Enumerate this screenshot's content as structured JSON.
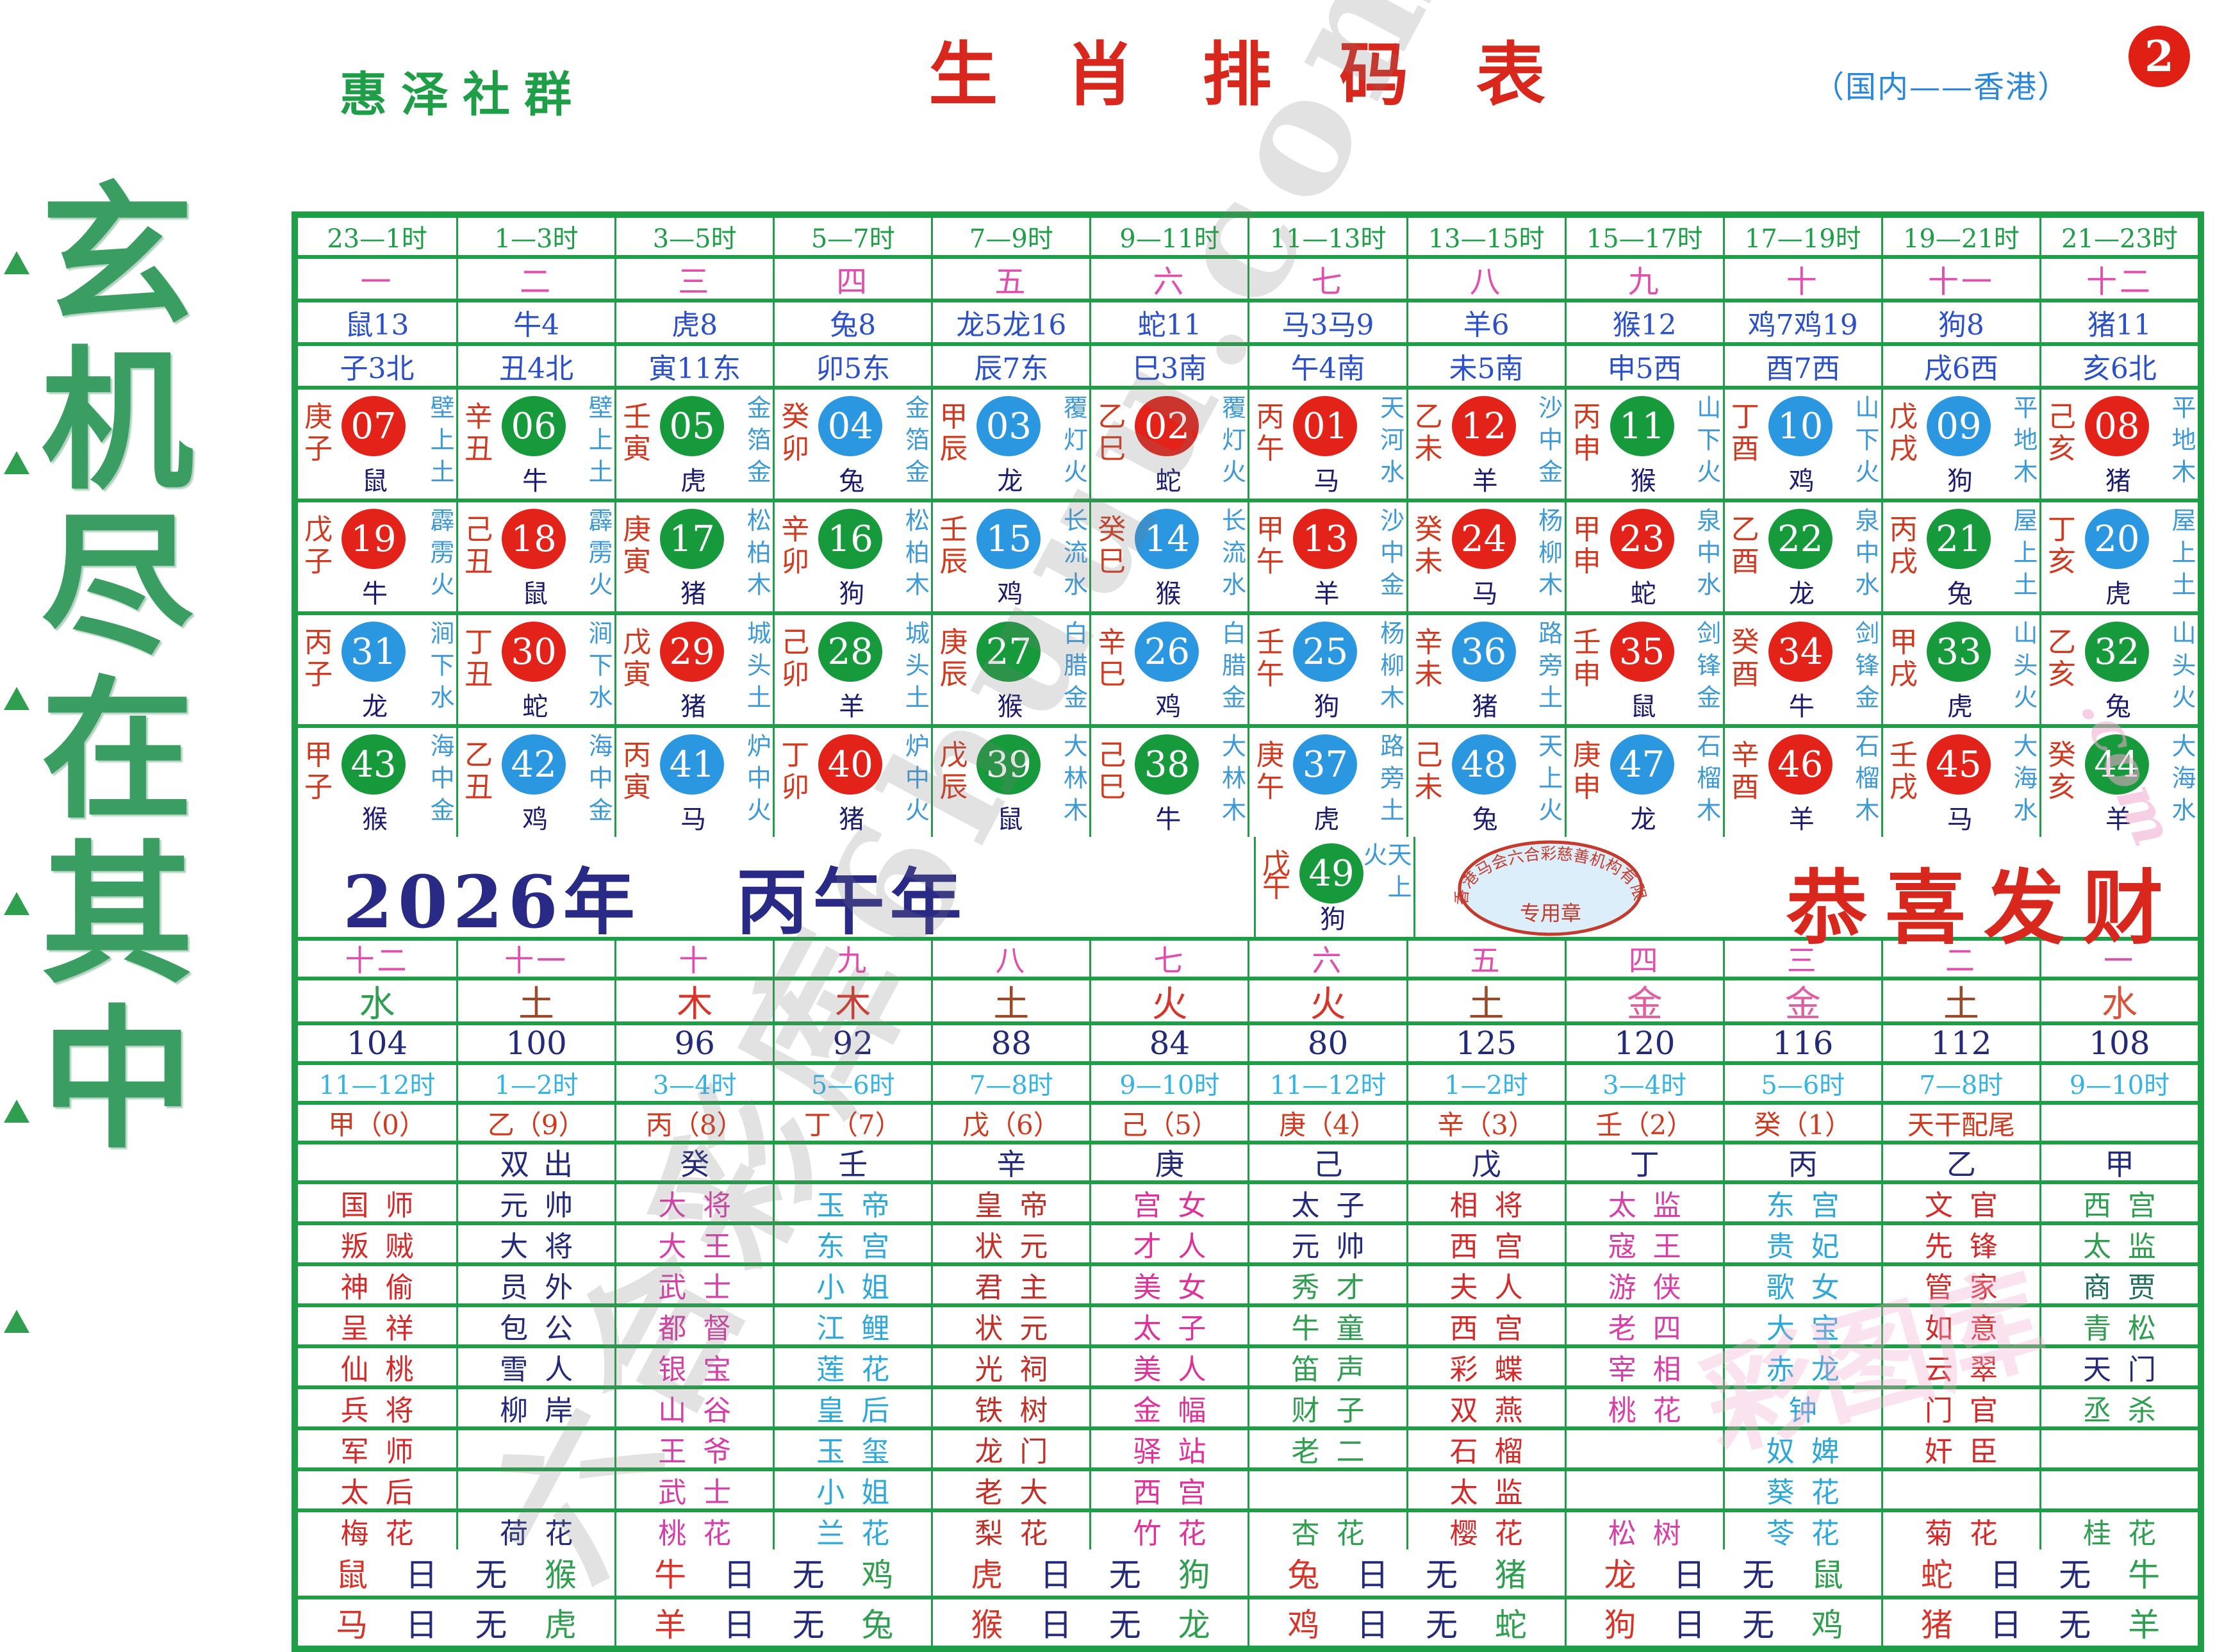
{
  "page": {
    "brand": "惠泽社群",
    "title": "生 肖 排 码 表",
    "region": "（国内——香港）",
    "badge": "2",
    "side_title": "玄机尽在其中",
    "watermark_gray": "六合彩库6huuu.com",
    "watermark_pink": "彩图库",
    "watermark_com": ".com",
    "colors": {
      "grid_green": "#1e9e46",
      "ball_red": "#e32219",
      "ball_green": "#179a3c",
      "ball_blue": "#2b97e0",
      "title_red": "#d8281e",
      "navy": "#232a7a"
    }
  },
  "top": {
    "hours": [
      "23—1时",
      "1—3时",
      "3—5时",
      "5—7时",
      "7—9时",
      "9—11时",
      "11—13时",
      "13—15时",
      "15—17时",
      "17—19时",
      "19—21时",
      "21—23时"
    ],
    "ordinals": [
      "一",
      "二",
      "三",
      "四",
      "五",
      "六",
      "七",
      "八",
      "九",
      "十",
      "十一",
      "十二"
    ],
    "animals": [
      "鼠13",
      "牛4",
      "虎8",
      "兔8",
      "龙5龙16",
      "蛇11",
      "马3马9",
      "羊6",
      "猴12",
      "鸡7鸡19",
      "狗8",
      "猪11"
    ],
    "branches": [
      "子3北",
      "丑4北",
      "寅11东",
      "卯5东",
      "辰7东",
      "巳3南",
      "午4南",
      "未5南",
      "申5西",
      "酉7西",
      "戌6西",
      "亥6北"
    ]
  },
  "grid": [
    [
      {
        "stem": "庚",
        "branch": "子",
        "num": "07",
        "color": "r",
        "animal": "鼠",
        "nayin": "壁上土"
      },
      {
        "stem": "辛",
        "branch": "丑",
        "num": "06",
        "color": "g",
        "animal": "牛",
        "nayin": "壁上土"
      },
      {
        "stem": "壬",
        "branch": "寅",
        "num": "05",
        "color": "g",
        "animal": "虎",
        "nayin": "金箔金"
      },
      {
        "stem": "癸",
        "branch": "卯",
        "num": "04",
        "color": "b",
        "animal": "兔",
        "nayin": "金箔金"
      },
      {
        "stem": "甲",
        "branch": "辰",
        "num": "03",
        "color": "b",
        "animal": "龙",
        "nayin": "覆灯火"
      },
      {
        "stem": "乙",
        "branch": "巳",
        "num": "02",
        "color": "r",
        "animal": "蛇",
        "nayin": "覆灯火"
      },
      {
        "stem": "丙",
        "branch": "午",
        "num": "01",
        "color": "r",
        "animal": "马",
        "nayin": "天河水"
      },
      {
        "stem": "乙",
        "branch": "未",
        "num": "12",
        "color": "r",
        "animal": "羊",
        "nayin": "沙中金"
      },
      {
        "stem": "丙",
        "branch": "申",
        "num": "11",
        "color": "g",
        "animal": "猴",
        "nayin": "山下火"
      },
      {
        "stem": "丁",
        "branch": "酉",
        "num": "10",
        "color": "b",
        "animal": "鸡",
        "nayin": "山下火"
      },
      {
        "stem": "戊",
        "branch": "戌",
        "num": "09",
        "color": "b",
        "animal": "狗",
        "nayin": "平地木"
      },
      {
        "stem": "己",
        "branch": "亥",
        "num": "08",
        "color": "r",
        "animal": "猪",
        "nayin": "平地木"
      }
    ],
    [
      {
        "stem": "戊",
        "branch": "子",
        "num": "19",
        "color": "r",
        "animal": "牛",
        "nayin": "霹雳火"
      },
      {
        "stem": "己",
        "branch": "丑",
        "num": "18",
        "color": "r",
        "animal": "鼠",
        "nayin": "霹雳火"
      },
      {
        "stem": "庚",
        "branch": "寅",
        "num": "17",
        "color": "g",
        "animal": "猪",
        "nayin": "松柏木"
      },
      {
        "stem": "辛",
        "branch": "卯",
        "num": "16",
        "color": "g",
        "animal": "狗",
        "nayin": "松柏木"
      },
      {
        "stem": "壬",
        "branch": "辰",
        "num": "15",
        "color": "b",
        "animal": "鸡",
        "nayin": "长流水"
      },
      {
        "stem": "癸",
        "branch": "巳",
        "num": "14",
        "color": "b",
        "animal": "猴",
        "nayin": "长流水"
      },
      {
        "stem": "甲",
        "branch": "午",
        "num": "13",
        "color": "r",
        "animal": "羊",
        "nayin": "沙中金"
      },
      {
        "stem": "癸",
        "branch": "未",
        "num": "24",
        "color": "r",
        "animal": "马",
        "nayin": "杨柳木"
      },
      {
        "stem": "甲",
        "branch": "申",
        "num": "23",
        "color": "r",
        "animal": "蛇",
        "nayin": "泉中水"
      },
      {
        "stem": "乙",
        "branch": "酉",
        "num": "22",
        "color": "g",
        "animal": "龙",
        "nayin": "泉中水"
      },
      {
        "stem": "丙",
        "branch": "戌",
        "num": "21",
        "color": "g",
        "animal": "兔",
        "nayin": "屋上土"
      },
      {
        "stem": "丁",
        "branch": "亥",
        "num": "20",
        "color": "b",
        "animal": "虎",
        "nayin": "屋上土"
      }
    ],
    [
      {
        "stem": "丙",
        "branch": "子",
        "num": "31",
        "color": "b",
        "animal": "龙",
        "nayin": "涧下水"
      },
      {
        "stem": "丁",
        "branch": "丑",
        "num": "30",
        "color": "r",
        "animal": "蛇",
        "nayin": "涧下水"
      },
      {
        "stem": "戊",
        "branch": "寅",
        "num": "29",
        "color": "r",
        "animal": "猪",
        "nayin": "城头土"
      },
      {
        "stem": "己",
        "branch": "卯",
        "num": "28",
        "color": "g",
        "animal": "羊",
        "nayin": "城头土"
      },
      {
        "stem": "庚",
        "branch": "辰",
        "num": "27",
        "color": "g",
        "animal": "猴",
        "nayin": "白腊金"
      },
      {
        "stem": "辛",
        "branch": "巳",
        "num": "26",
        "color": "b",
        "animal": "鸡",
        "nayin": "白腊金"
      },
      {
        "stem": "壬",
        "branch": "午",
        "num": "25",
        "color": "b",
        "animal": "狗",
        "nayin": "杨柳木"
      },
      {
        "stem": "辛",
        "branch": "未",
        "num": "36",
        "color": "b",
        "animal": "猪",
        "nayin": "路旁土"
      },
      {
        "stem": "壬",
        "branch": "申",
        "num": "35",
        "color": "r",
        "animal": "鼠",
        "nayin": "剑锋金"
      },
      {
        "stem": "癸",
        "branch": "酉",
        "num": "34",
        "color": "r",
        "animal": "牛",
        "nayin": "剑锋金"
      },
      {
        "stem": "甲",
        "branch": "戌",
        "num": "33",
        "color": "g",
        "animal": "虎",
        "nayin": "山头火"
      },
      {
        "stem": "乙",
        "branch": "亥",
        "num": "32",
        "color": "g",
        "animal": "兔",
        "nayin": "山头火"
      }
    ],
    [
      {
        "stem": "甲",
        "branch": "子",
        "num": "43",
        "color": "g",
        "animal": "猴",
        "nayin": "海中金"
      },
      {
        "stem": "乙",
        "branch": "丑",
        "num": "42",
        "color": "b",
        "animal": "鸡",
        "nayin": "海中金"
      },
      {
        "stem": "丙",
        "branch": "寅",
        "num": "41",
        "color": "b",
        "animal": "马",
        "nayin": "炉中火"
      },
      {
        "stem": "丁",
        "branch": "卯",
        "num": "40",
        "color": "r",
        "animal": "猪",
        "nayin": "炉中火"
      },
      {
        "stem": "戊",
        "branch": "辰",
        "num": "39",
        "color": "g",
        "animal": "鼠",
        "nayin": "大林木"
      },
      {
        "stem": "己",
        "branch": "巳",
        "num": "38",
        "color": "g",
        "animal": "牛",
        "nayin": "大林木"
      },
      {
        "stem": "庚",
        "branch": "午",
        "num": "37",
        "color": "b",
        "animal": "虎",
        "nayin": "路旁土"
      },
      {
        "stem": "己",
        "branch": "未",
        "num": "48",
        "color": "b",
        "animal": "兔",
        "nayin": "天上火"
      },
      {
        "stem": "庚",
        "branch": "申",
        "num": "47",
        "color": "b",
        "animal": "龙",
        "nayin": "石榴木"
      },
      {
        "stem": "辛",
        "branch": "酉",
        "num": "46",
        "color": "r",
        "animal": "羊",
        "nayin": "石榴木"
      },
      {
        "stem": "壬",
        "branch": "戌",
        "num": "45",
        "color": "r",
        "animal": "马",
        "nayin": "大海水"
      },
      {
        "stem": "癸",
        "branch": "亥",
        "num": "44",
        "color": "g",
        "animal": "羊",
        "nayin": "大海水"
      }
    ]
  ],
  "year_band": {
    "year": "2026年",
    "ganzhi": "丙午年",
    "cell49": {
      "stem": "戊",
      "branch": "午",
      "num": "49",
      "color": "g",
      "animal": "狗",
      "nayin": "天上火"
    },
    "seal_text": "香港马会六合彩慈善机构有限公司",
    "seal_label": "专用章",
    "greeting": "恭喜发财"
  },
  "lower": {
    "ordinals": [
      "十二",
      "十一",
      "十",
      "九",
      "八",
      "七",
      "六",
      "五",
      "四",
      "三",
      "二",
      "一"
    ],
    "elements": [
      "水",
      "土",
      "木",
      "木",
      "土",
      "火",
      "火",
      "土",
      "金",
      "金",
      "土",
      "水"
    ],
    "element_colors": [
      "#2f9e4f",
      "#9a4a28",
      "#d8352a",
      "#d8352a",
      "#9a4a28",
      "#d8352a",
      "#d8352a",
      "#9a4a28",
      "#df5f9f",
      "#df5f9f",
      "#9a4a28",
      "#d8543a"
    ],
    "numbers": [
      "104",
      "100",
      "96",
      "92",
      "88",
      "84",
      "80",
      "125",
      "120",
      "116",
      "112",
      "108"
    ],
    "hours2": [
      "11—12时",
      "1—2时",
      "3—4时",
      "5—6时",
      "7—8时",
      "9—10时",
      "11—12时",
      "1—2时",
      "3—4时",
      "5—6时",
      "7—8时",
      "9—10时"
    ],
    "stems": [
      "甲（0）",
      "乙（9）",
      "丙（8）",
      "丁（7）",
      "戊（6）",
      "己（5）",
      "庚（4）",
      "辛（3）",
      "壬（2）",
      "癸（1）",
      "天干配尾",
      ""
    ],
    "doubles": [
      "",
      "双出",
      "癸",
      "壬",
      "辛",
      "庚",
      "己",
      "戊",
      "丁",
      "丙",
      "乙",
      "甲"
    ]
  },
  "names": {
    "rows": [
      [
        "国师",
        "元帅",
        "大将",
        "玉帝",
        "皇帝",
        "宫女",
        "太子",
        "相将",
        "太监",
        "东宫",
        "文官",
        "西宫"
      ],
      [
        "叛贼",
        "大将",
        "大王",
        "东宫",
        "状元",
        "才人",
        "元帅",
        "西宫",
        "寇王",
        "贵妃",
        "先锋",
        "太监"
      ],
      [
        "神偷",
        "员外",
        "武士",
        "小姐",
        "君主",
        "美女",
        "秀才",
        "夫人",
        "游侠",
        "歌女",
        "管家",
        "商贾"
      ],
      [
        "呈祥",
        "包公",
        "都督",
        "江鲤",
        "状元",
        "太子",
        "牛童",
        "西宫",
        "老四",
        "大宝",
        "如意",
        "青松"
      ],
      [
        "仙桃",
        "雪人",
        "银宝",
        "莲花",
        "光祠",
        "美人",
        "笛声",
        "彩蝶",
        "宰相",
        "赤龙",
        "云翠",
        "天门"
      ],
      [
        "兵将",
        "柳岸",
        "山谷",
        "皇后",
        "铁树",
        "金幅",
        "财子",
        "双燕",
        "桃花",
        "钟",
        "门官",
        "丞杀"
      ],
      [
        "军师",
        "",
        "王爷",
        "玉玺",
        "龙门",
        "驿站",
        "老二",
        "石榴",
        "",
        "奴婢",
        "奸臣",
        ""
      ],
      [
        "太后",
        "",
        "武士",
        "小姐",
        "老大",
        "西宫",
        "",
        "太监",
        "",
        "葵花",
        "",
        ""
      ],
      [
        "梅花",
        "荷花",
        "桃花",
        "兰花",
        "梨花",
        "竹花",
        "杏花",
        "樱花",
        "松树",
        "苓花",
        "菊花",
        "桂花"
      ]
    ],
    "column_colors": [
      "#d42a2a",
      "#232a7a",
      "#d63fa8",
      "#2ea8d8",
      "#c03028",
      "#e0309a",
      "#2f9e4f",
      "#d42a2a",
      "#d63fa8",
      "#2ea8d8",
      "#d42a2a",
      "#2f9e4f"
    ],
    "overrides": {
      "0-6": "#232a7a",
      "1-6": "#232a7a",
      "2-11": "#1f6e5e",
      "4-11": "#232a7a"
    }
  },
  "bottom": {
    "row1": [
      "鼠日无猴",
      "牛日无鸡",
      "虎日无狗",
      "兔日无猪",
      "龙日无鼠",
      "蛇日无牛"
    ],
    "row2": [
      "马日无虎",
      "羊日无兔",
      "猴日无龙",
      "鸡日无蛇",
      "狗日无鸡",
      "猪日无羊"
    ]
  }
}
